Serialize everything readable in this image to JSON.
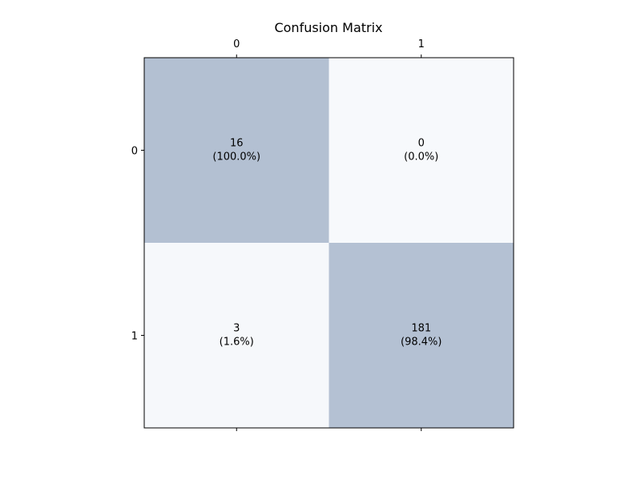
{
  "chart_data": {
    "type": "heatmap",
    "title": "Confusion Matrix",
    "xlabel": "",
    "ylabel": "",
    "x_categories": [
      "0",
      "1"
    ],
    "y_categories": [
      "0",
      "1"
    ],
    "x_tick_position": "top",
    "grid": false,
    "legend": "none",
    "colormap": {
      "low": "#f7f9fc",
      "high": "#b3c0d2"
    },
    "values": [
      [
        16,
        0
      ],
      [
        3,
        181
      ]
    ],
    "row_percentages": [
      [
        100.0,
        0.0
      ],
      [
        1.6,
        98.4
      ]
    ],
    "cell_labels": [
      [
        {
          "count": "16",
          "percent": "(100.0%)"
        },
        {
          "count": "0",
          "percent": "(0.0%)"
        }
      ],
      [
        {
          "count": "3",
          "percent": "(1.6%)"
        },
        {
          "count": "181",
          "percent": "(98.4%)"
        }
      ]
    ]
  }
}
